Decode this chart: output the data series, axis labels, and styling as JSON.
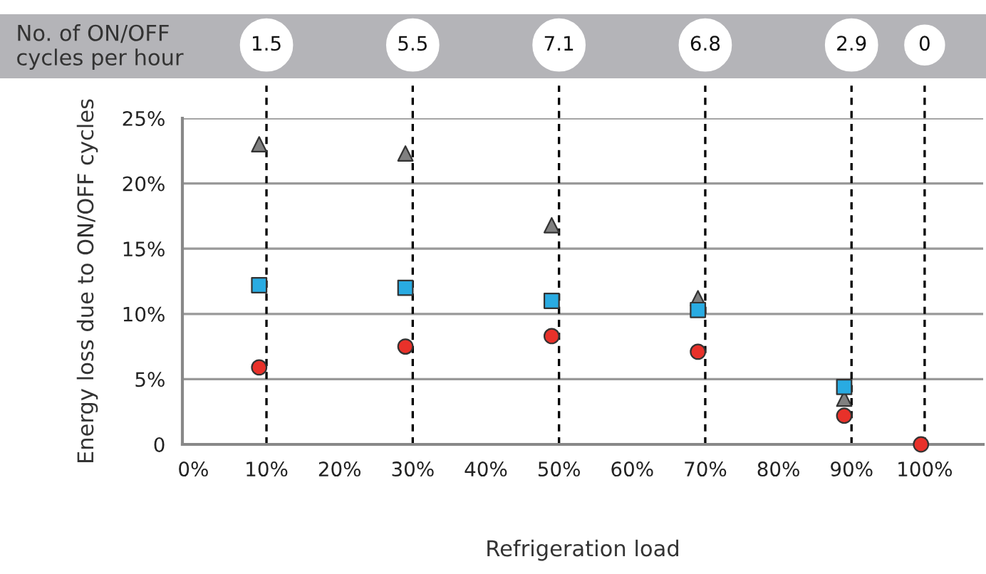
{
  "chart_data": {
    "type": "scatter",
    "xlabel": "Refrigeration load",
    "ylabel": "Energy loss due to ON/OFF cycles",
    "annotations": [
      "No. of ON/OFF cycles per hour",
      "1.5",
      "5.5",
      "7.1",
      "6.8",
      "2.9",
      "0"
    ],
    "legend": false,
    "series": [
      {
        "type": "scatter",
        "marker": "triangle",
        "color": "#808080",
        "x": [
          9,
          29,
          49,
          69,
          89
        ],
        "values": [
          23,
          22.3,
          16.8,
          11.2,
          3.5
        ]
      },
      {
        "type": "scatter",
        "marker": "square",
        "color": "#29abe2",
        "x": [
          9,
          29,
          49,
          69,
          89
        ],
        "values": [
          12.2,
          12.0,
          11.0,
          10.3,
          4.4
        ]
      },
      {
        "type": "scatter",
        "marker": "circle",
        "color": "#e8312a",
        "x": [
          9,
          29,
          49,
          69,
          89,
          99.5
        ],
        "values": [
          5.9,
          7.5,
          8.3,
          7.1,
          2.2,
          0
        ]
      }
    ],
    "ref_lines": [
      {
        "axis": "x",
        "value": 10,
        "color": "#000000",
        "line_style": "dashed"
      },
      {
        "axis": "x",
        "value": 30,
        "color": "#000000",
        "line_style": "dashed"
      },
      {
        "axis": "x",
        "value": 50,
        "color": "#000000",
        "line_style": "dashed"
      },
      {
        "axis": "x",
        "value": 70,
        "color": "#000000",
        "line_style": "dashed"
      },
      {
        "axis": "x",
        "value": 90,
        "color": "#000000",
        "line_style": "dashed"
      },
      {
        "axis": "x",
        "value": 100,
        "color": "#000000",
        "line_style": "dashed"
      }
    ],
    "xlim": [
      -1.5,
      108
    ],
    "ylim": [
      0,
      25
    ],
    "xticks": [
      {
        "value": 0,
        "label": "0%"
      },
      {
        "value": 10,
        "label": "10%"
      },
      {
        "value": 20,
        "label": "20%"
      },
      {
        "value": 30,
        "label": "30%"
      },
      {
        "value": 40,
        "label": "40%"
      },
      {
        "value": 50,
        "label": "50%"
      },
      {
        "value": 60,
        "label": "60%"
      },
      {
        "value": 70,
        "label": "70%"
      },
      {
        "value": 80,
        "label": "80%"
      },
      {
        "value": 90,
        "label": "90%"
      },
      {
        "value": 100,
        "label": "100%"
      }
    ],
    "yticks": [
      0,
      {
        "value": 5,
        "label": "5%"
      },
      {
        "value": 10,
        "label": "10%"
      },
      {
        "value": 15,
        "label": "15%"
      },
      {
        "value": 20,
        "label": "20%"
      },
      {
        "value": 25,
        "label": "25%"
      }
    ],
    "grid": "y"
  }
}
